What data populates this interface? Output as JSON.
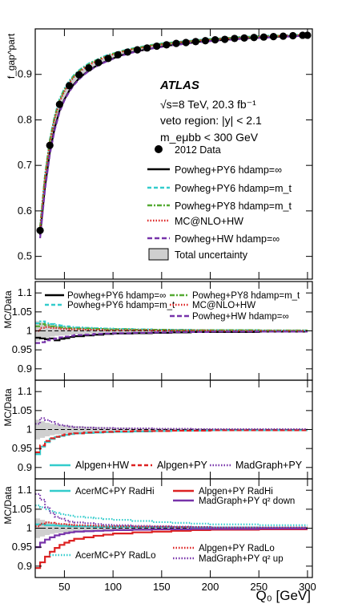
{
  "chart_data": [
    {
      "type": "line",
      "panel": "main",
      "title": "ATLAS",
      "ylabel": "f_gap^part",
      "info_lines": [
        "√s=8 TeV, 20.3 fb⁻¹",
        "veto region: |y| < 2.1",
        "m_eμbb < 300 GeV"
      ],
      "ylim": [
        0.45,
        1.0
      ],
      "yticks": [
        0.5,
        0.6,
        0.7,
        0.8,
        0.9
      ],
      "x": [
        25,
        30,
        35,
        40,
        45,
        50,
        55,
        60,
        65,
        70,
        75,
        80,
        85,
        90,
        95,
        100,
        105,
        110,
        115,
        120,
        125,
        130,
        135,
        140,
        145,
        150,
        155,
        160,
        165,
        170,
        175,
        180,
        185,
        190,
        195,
        200,
        205,
        210,
        215,
        220,
        225,
        230,
        235,
        240,
        245,
        250,
        255,
        260,
        265,
        270,
        275,
        280,
        285,
        290,
        295,
        300
      ],
      "series": [
        {
          "name": "2012 Data",
          "color": "#000000",
          "style": "points",
          "values": [
            0.557,
            0.666,
            0.744,
            0.797,
            0.834,
            0.857,
            0.875,
            0.889,
            0.899,
            0.907,
            0.914,
            0.92,
            0.926,
            0.931,
            0.935,
            0.939,
            0.943,
            0.946,
            0.949,
            0.951,
            0.954,
            0.956,
            0.958,
            0.96,
            0.962,
            0.963,
            0.965,
            0.966,
            0.968,
            0.969,
            0.97,
            0.971,
            0.972,
            0.973,
            0.974,
            0.975,
            0.976,
            0.977,
            0.977,
            0.978,
            0.979,
            0.979,
            0.98,
            0.981,
            0.981,
            0.982,
            0.982,
            0.983,
            0.983,
            0.984,
            0.984,
            0.985,
            0.985,
            0.986,
            0.986,
            0.986
          ]
        },
        {
          "name": "Powheg+PY6 hdamp=∞",
          "color": "#000000",
          "style": "solid",
          "values": [
            0.547,
            0.652,
            0.729,
            0.782,
            0.82,
            0.845,
            0.864,
            0.879,
            0.891,
            0.9,
            0.908,
            0.915,
            0.921,
            0.926,
            0.931,
            0.935,
            0.939,
            0.943,
            0.946,
            0.949,
            0.951,
            0.953,
            0.955,
            0.957,
            0.959,
            0.961,
            0.963,
            0.964,
            0.966,
            0.967,
            0.968,
            0.969,
            0.971,
            0.972,
            0.973,
            0.974,
            0.975,
            0.975,
            0.976,
            0.977,
            0.978,
            0.978,
            0.979,
            0.98,
            0.98,
            0.981,
            0.981,
            0.982,
            0.982,
            0.983,
            0.983,
            0.984,
            0.984,
            0.985,
            0.985,
            0.985
          ]
        },
        {
          "name": "Powheg+PY6 hdamp=m_t",
          "color": "#33cccc",
          "style": "dash-dot",
          "values": [
            0.565,
            0.678,
            0.757,
            0.809,
            0.846,
            0.869,
            0.886,
            0.899,
            0.909,
            0.917,
            0.924,
            0.929,
            0.934,
            0.939,
            0.943,
            0.946,
            0.949,
            0.952,
            0.955,
            0.957,
            0.959,
            0.961,
            0.963,
            0.965,
            0.966,
            0.968,
            0.969,
            0.97,
            0.971,
            0.972,
            0.973,
            0.974,
            0.975,
            0.976,
            0.977,
            0.978,
            0.978,
            0.979,
            0.98,
            0.98,
            0.981,
            0.982,
            0.982,
            0.983,
            0.983,
            0.984,
            0.984,
            0.985,
            0.985,
            0.985,
            0.986,
            0.986,
            0.986,
            0.987,
            0.987,
            0.987
          ]
        },
        {
          "name": "Powheg+PY8 hdamp=m_t",
          "color": "#55aa33",
          "style": "dash-dot",
          "values": [
            0.563,
            0.675,
            0.754,
            0.806,
            0.843,
            0.866,
            0.883,
            0.897,
            0.907,
            0.915,
            0.922,
            0.928,
            0.933,
            0.937,
            0.941,
            0.945,
            0.948,
            0.951,
            0.954,
            0.956,
            0.958,
            0.96,
            0.962,
            0.964,
            0.965,
            0.967,
            0.968,
            0.969,
            0.97,
            0.971,
            0.972,
            0.973,
            0.974,
            0.975,
            0.976,
            0.977,
            0.978,
            0.978,
            0.979,
            0.98,
            0.98,
            0.981,
            0.981,
            0.982,
            0.982,
            0.983,
            0.983,
            0.984,
            0.984,
            0.985,
            0.985,
            0.985,
            0.986,
            0.986,
            0.986,
            0.987
          ]
        },
        {
          "name": "MC@NLO+HW",
          "color": "#dd2222",
          "style": "dotted",
          "values": [
            0.56,
            0.672,
            0.75,
            0.803,
            0.84,
            0.863,
            0.881,
            0.895,
            0.905,
            0.913,
            0.92,
            0.926,
            0.931,
            0.936,
            0.94,
            0.944,
            0.947,
            0.95,
            0.953,
            0.955,
            0.957,
            0.959,
            0.961,
            0.963,
            0.964,
            0.966,
            0.967,
            0.968,
            0.97,
            0.971,
            0.972,
            0.973,
            0.974,
            0.975,
            0.976,
            0.976,
            0.977,
            0.978,
            0.978,
            0.979,
            0.98,
            0.98,
            0.981,
            0.981,
            0.982,
            0.982,
            0.983,
            0.983,
            0.984,
            0.984,
            0.985,
            0.985,
            0.985,
            0.986,
            0.986,
            0.986
          ]
        },
        {
          "name": "Powheg+HW hdamp=∞",
          "color": "#7733aa",
          "style": "dashed",
          "values": [
            0.54,
            0.646,
            0.724,
            0.778,
            0.817,
            0.843,
            0.862,
            0.877,
            0.889,
            0.899,
            0.907,
            0.914,
            0.92,
            0.925,
            0.93,
            0.934,
            0.938,
            0.942,
            0.945,
            0.948,
            0.95,
            0.953,
            0.955,
            0.957,
            0.959,
            0.96,
            0.962,
            0.964,
            0.965,
            0.966,
            0.968,
            0.969,
            0.97,
            0.971,
            0.972,
            0.973,
            0.974,
            0.975,
            0.976,
            0.976,
            0.977,
            0.978,
            0.978,
            0.979,
            0.98,
            0.98,
            0.981,
            0.981,
            0.982,
            0.982,
            0.983,
            0.983,
            0.984,
            0.984,
            0.984,
            0.985
          ]
        }
      ],
      "uncertainty_label": "Total uncertainty",
      "uncertainty_halfwidth": [
        0.012,
        0.011,
        0.01,
        0.009,
        0.008,
        0.007,
        0.0065,
        0.006,
        0.0055,
        0.005,
        0.0048,
        0.0045,
        0.0042,
        0.004,
        0.0038,
        0.0036,
        0.0034,
        0.0032,
        0.003,
        0.003,
        0.0028,
        0.0027,
        0.0026,
        0.0025,
        0.0024,
        0.0023,
        0.0022,
        0.0021,
        0.002,
        0.002,
        0.0019,
        0.0018,
        0.0018,
        0.0017,
        0.0016,
        0.0016,
        0.0015,
        0.0015,
        0.0014,
        0.0014,
        0.0013,
        0.0013,
        0.0012,
        0.0012,
        0.0012,
        0.0011,
        0.0011,
        0.0011,
        0.001,
        0.001,
        0.001,
        0.001,
        0.001,
        0.001,
        0.001,
        0.001
      ]
    },
    {
      "type": "line",
      "panel": "ratio-1",
      "ylabel": "MC/Data",
      "ylim": [
        0.87,
        1.13
      ],
      "yticks": [
        0.9,
        0.95,
        1,
        1.05,
        1.1
      ],
      "edges": [
        20,
        25,
        30,
        35,
        40,
        45,
        50,
        55,
        60,
        70,
        80,
        90,
        100,
        120,
        140,
        160,
        180,
        200,
        250,
        300
      ],
      "uncertainty": [
        0.026,
        0.022,
        0.018,
        0.015,
        0.013,
        0.012,
        0.011,
        0.01,
        0.009,
        0.008,
        0.007,
        0.006,
        0.005,
        0.004,
        0.0035,
        0.003,
        0.0028,
        0.0025,
        0.0022
      ],
      "series": [
        {
          "name": "Powheg+PY6 hdamp=∞",
          "color": "#000000",
          "style": "solid",
          "values": [
            0.982,
            0.98,
            0.978,
            0.98,
            0.975,
            0.979,
            0.981,
            0.984,
            0.986,
            0.988,
            0.99,
            0.992,
            0.993,
            0.994,
            0.995,
            0.996,
            0.997,
            0.997,
            0.998
          ]
        },
        {
          "name": "Powheg+PY6 hdamp=m_t",
          "color": "#33cccc",
          "style": "dash-dot",
          "values": [
            1.02,
            1.025,
            1.02,
            1.018,
            1.015,
            1.014,
            1.012,
            1.01,
            1.009,
            1.008,
            1.007,
            1.006,
            1.005,
            1.004,
            1.003,
            1.003,
            1.002,
            1.002,
            1.001
          ]
        },
        {
          "name": "Powheg+PY8 hdamp=m_t",
          "color": "#55aa33",
          "style": "dash-dot",
          "values": [
            1.012,
            1.018,
            1.015,
            1.012,
            1.01,
            1.009,
            1.008,
            1.007,
            1.006,
            1.006,
            1.005,
            1.004,
            1.004,
            1.003,
            1.003,
            1.002,
            1.002,
            1.002,
            1.001
          ]
        },
        {
          "name": "MC@NLO+HW",
          "color": "#dd2222",
          "style": "dotted",
          "values": [
            1.0,
            1.008,
            1.01,
            1.008,
            1.007,
            1.005,
            1.005,
            1.004,
            1.004,
            1.003,
            1.003,
            1.002,
            1.002,
            1.002,
            1.001,
            1.001,
            1.001,
            1.0,
            1.0
          ]
        },
        {
          "name": "Powheg+HW hdamp=∞",
          "color": "#7733aa",
          "style": "dashed",
          "values": [
            0.968,
            0.97,
            0.975,
            0.978,
            0.98,
            0.983,
            0.985,
            0.987,
            0.989,
            0.99,
            0.992,
            0.993,
            0.994,
            0.995,
            0.996,
            0.997,
            0.997,
            0.998,
            0.998
          ]
        }
      ]
    },
    {
      "type": "line",
      "panel": "ratio-2",
      "ylabel": "MC/Data",
      "ylim": [
        0.87,
        1.13
      ],
      "yticks": [
        0.9,
        0.95,
        1,
        1.05,
        1.1
      ],
      "edges": [
        20,
        25,
        30,
        35,
        40,
        45,
        50,
        55,
        60,
        70,
        80,
        90,
        100,
        120,
        140,
        160,
        180,
        200,
        250,
        300
      ],
      "uncertainty": [
        0.026,
        0.022,
        0.018,
        0.015,
        0.013,
        0.012,
        0.011,
        0.01,
        0.009,
        0.008,
        0.007,
        0.006,
        0.005,
        0.004,
        0.0035,
        0.003,
        0.0028,
        0.0025,
        0.0022
      ],
      "series": [
        {
          "name": "Alpgen+HW",
          "color": "#33cccc",
          "style": "solid",
          "values": [
            0.935,
            0.955,
            0.967,
            0.975,
            0.98,
            0.983,
            0.986,
            0.988,
            0.99,
            0.991,
            0.992,
            0.993,
            0.994,
            0.995,
            0.996,
            0.997,
            0.997,
            0.998,
            0.998
          ]
        },
        {
          "name": "Alpgen+PY",
          "color": "#dd2222",
          "style": "dashed",
          "values": [
            0.94,
            0.958,
            0.97,
            0.977,
            0.981,
            0.985,
            0.987,
            0.989,
            0.99,
            0.992,
            0.993,
            0.994,
            0.995,
            0.996,
            0.996,
            0.997,
            0.997,
            0.998,
            0.998
          ]
        },
        {
          "name": "MadGraph+PY",
          "color": "#7733aa",
          "style": "dotted",
          "values": [
            1.015,
            1.03,
            1.025,
            1.02,
            1.015,
            1.012,
            1.01,
            1.008,
            1.006,
            1.005,
            1.004,
            1.004,
            1.003,
            1.003,
            1.002,
            1.002,
            1.001,
            1.001,
            1.001
          ]
        }
      ]
    },
    {
      "type": "line",
      "panel": "ratio-3",
      "ylabel": "MC/Data",
      "ylim": [
        0.87,
        1.13
      ],
      "yticks": [
        0.9,
        0.95,
        1,
        1.05,
        1.1
      ],
      "xlim": [
        20,
        305
      ],
      "xticks": [
        50,
        100,
        150,
        200,
        250,
        300
      ],
      "xlabel": "Q₀ [GeV]",
      "edges": [
        20,
        25,
        30,
        35,
        40,
        45,
        50,
        55,
        60,
        70,
        80,
        90,
        100,
        120,
        140,
        160,
        180,
        200,
        250,
        300
      ],
      "uncertainty": [
        0.026,
        0.022,
        0.018,
        0.015,
        0.013,
        0.012,
        0.011,
        0.01,
        0.009,
        0.008,
        0.007,
        0.006,
        0.005,
        0.004,
        0.0035,
        0.003,
        0.0028,
        0.0025,
        0.0022
      ],
      "series": [
        {
          "name": "AcerMC+PY RadHi",
          "color": "#33cccc",
          "style": "solid",
          "values": [
            1.01,
            1.01,
            1.008,
            1.008,
            1.007,
            1.006,
            1.006,
            1.005,
            1.005,
            1.005,
            1.004,
            1.004,
            1.004,
            1.003,
            1.003,
            1.003,
            1.002,
            1.002,
            1.001
          ]
        },
        {
          "name": "Alpgen+PY RadHi",
          "color": "#dd2222",
          "style": "solid",
          "values": [
            0.895,
            0.91,
            0.925,
            0.938,
            0.948,
            0.956,
            0.962,
            0.967,
            0.972,
            0.976,
            0.98,
            0.983,
            0.986,
            0.989,
            0.991,
            0.993,
            0.995,
            0.996,
            0.997
          ]
        },
        {
          "name": "MadGraph+PY q² down",
          "color": "#7733aa",
          "style": "solid",
          "values": [
            0.95,
            0.962,
            0.97,
            0.976,
            0.981,
            0.984,
            0.987,
            0.989,
            0.991,
            0.992,
            0.993,
            0.994,
            0.995,
            0.996,
            0.997,
            0.997,
            0.998,
            0.998,
            0.999
          ]
        },
        {
          "name": "AcerMC+PY RadLo",
          "color": "#33cccc",
          "style": "dotted",
          "values": [
            1.06,
            1.055,
            1.05,
            1.045,
            1.04,
            1.037,
            1.035,
            1.033,
            1.03,
            1.028,
            1.026,
            1.024,
            1.022,
            1.019,
            1.016,
            1.014,
            1.012,
            1.01,
            1.008
          ]
        },
        {
          "name": "Alpgen+PY RadLo",
          "color": "#dd2222",
          "style": "dotted",
          "values": [
            1.005,
            1.012,
            1.015,
            1.014,
            1.012,
            1.011,
            1.01,
            1.009,
            1.008,
            1.007,
            1.006,
            1.005,
            1.005,
            1.004,
            1.004,
            1.003,
            1.003,
            1.002,
            1.002
          ]
        },
        {
          "name": "MadGraph+PY q² up",
          "color": "#7733aa",
          "style": "dotted",
          "values": [
            1.09,
            1.075,
            1.055,
            1.04,
            1.03,
            1.025,
            1.02,
            1.017,
            1.015,
            1.013,
            1.011,
            1.009,
            1.008,
            1.006,
            1.005,
            1.004,
            1.003,
            1.002,
            1.002
          ]
        }
      ]
    }
  ]
}
